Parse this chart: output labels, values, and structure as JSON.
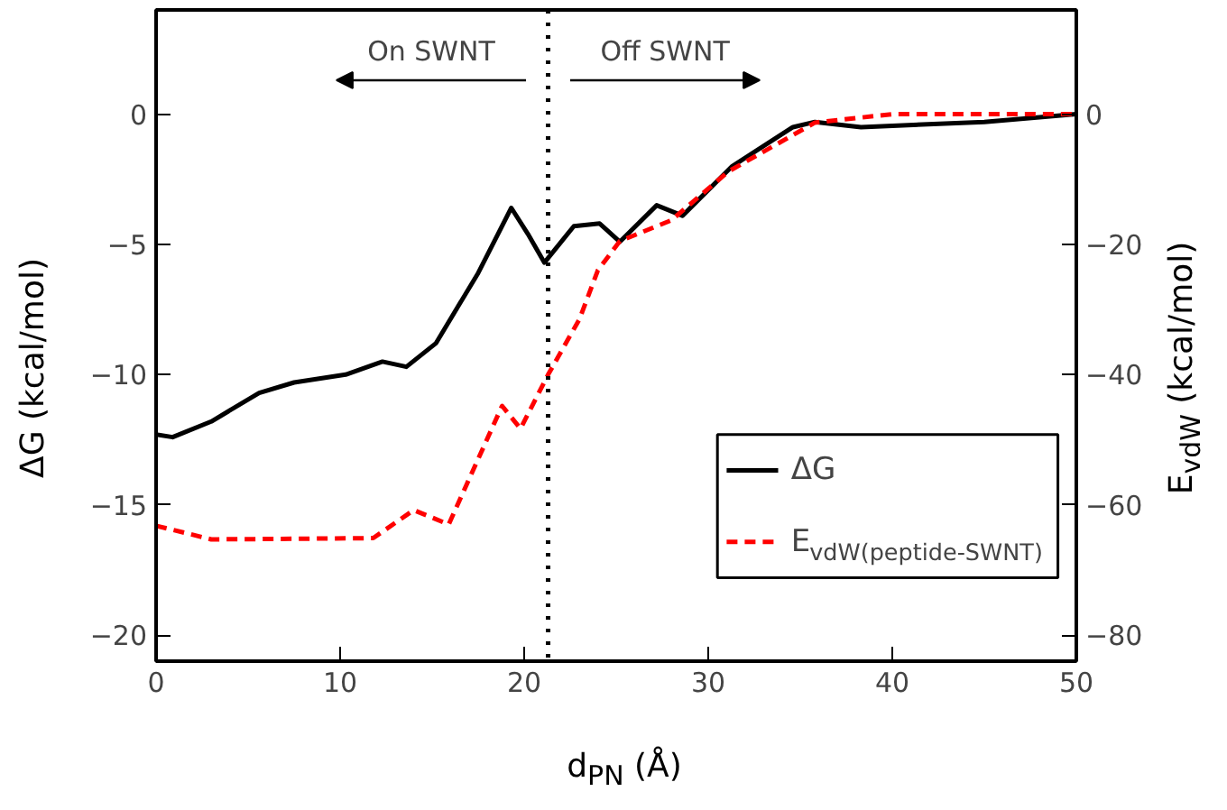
{
  "chart_data": {
    "type": "line",
    "xlabel": "d$_{PN}$ (Å)",
    "ylabel": "ΔG (kcal/mol)",
    "y2label": "E$_{vdW}$ (kcal/mol)",
    "xlim": [
      0,
      50
    ],
    "xticks": [
      0,
      10,
      20,
      30,
      40,
      50
    ],
    "ylim": [
      -21,
      4
    ],
    "yticks": [
      -20,
      -15,
      -10,
      -5,
      0
    ],
    "y2lim": [
      -84,
      16
    ],
    "y2ticks": [
      -80,
      -60,
      -40,
      -20,
      0
    ],
    "legend": "bottom right",
    "grid": false,
    "annotations": [
      "On SWNT",
      "Off SWNT"
    ],
    "ref_lines": [
      {
        "axis": "x",
        "value": 21.3,
        "label": null,
        "color": "#000000",
        "line_style": "dotted"
      }
    ],
    "series": [
      {
        "name": "ΔG",
        "color": "#000000",
        "line_style": "solid",
        "x": [
          0,
          0.9,
          3,
          5.6,
          7.5,
          10.3,
          12.3,
          13.6,
          15.2,
          17.5,
          19.3,
          20.2,
          21.1,
          22.7,
          24.1,
          25.2,
          27.2,
          28.6,
          31.3,
          34.6,
          35.8,
          38.3,
          45,
          50
        ],
        "values": [
          -12.3,
          -12.4,
          -11.8,
          -10.7,
          -10.3,
          -10.0,
          -9.5,
          -9.7,
          -8.8,
          -6.1,
          -3.6,
          -4.6,
          -5.7,
          -4.3,
          -4.2,
          -4.9,
          -3.5,
          -3.9,
          -2.0,
          -0.5,
          -0.3,
          -0.5,
          -0.3,
          0
        ]
      },
      {
        "name": "E$_{vdW(peptide-SWNT)}$",
        "color": "#ff0000",
        "line_style": "dashed",
        "axis": "y2",
        "x": [
          0,
          3,
          8,
          11.8,
          14,
          15.9,
          18.8,
          19.8,
          21.3,
          23,
          24,
          25.2,
          28,
          31.1,
          35.8,
          40,
          50
        ],
        "values": [
          -63.2,
          -65.3,
          -65.2,
          -65.1,
          -60.8,
          -63,
          -44.8,
          -48.3,
          -40,
          -31.5,
          -24,
          -19.5,
          -16.3,
          -8.8,
          -1.3,
          0,
          0
        ]
      }
    ]
  }
}
